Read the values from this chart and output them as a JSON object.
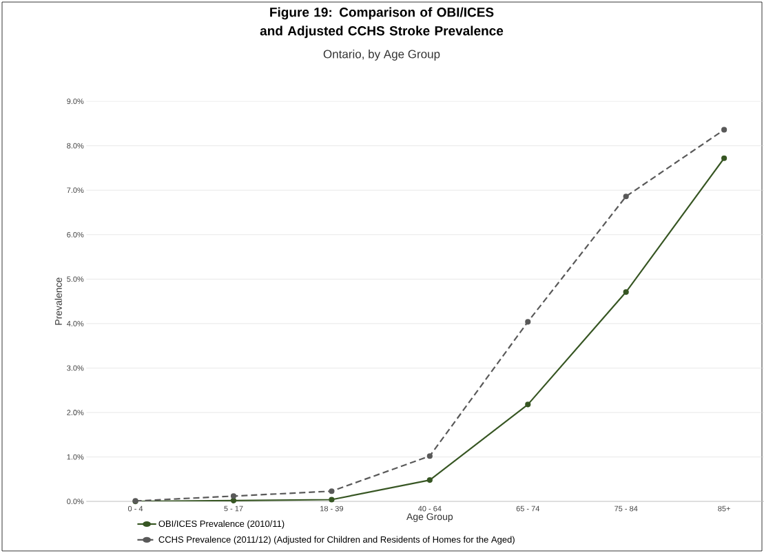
{
  "chart_data": {
    "type": "line",
    "title": "Figure 19: Comparison of OBI/ICES and Adjusted CCHS Stroke Prevalence",
    "subtitle": "Ontario, by Age Group",
    "xlabel": "Age Group",
    "ylabel": "Prevalence",
    "categories": [
      "0 - 4",
      "5 - 17",
      "18 - 39",
      "40 - 64",
      "65 - 74",
      "75 - 84",
      "85+"
    ],
    "series": [
      {
        "name": "OBI/ICES Prevalence (2010/11)",
        "color": "#375623",
        "line_style": "solid",
        "values": [
          0.0,
          0.02,
          0.04,
          0.48,
          2.18,
          4.71,
          7.72
        ]
      },
      {
        "name": "CCHS Prevalence (2011/12) (Adjusted for Children and Residents of Homes for the Aged)",
        "color": "#595959",
        "line_style": "dashed",
        "values": [
          0.01,
          0.12,
          0.23,
          1.02,
          4.04,
          6.86,
          8.36
        ]
      }
    ],
    "ylim": [
      0,
      9
    ],
    "yticks": [
      {
        "value": 0,
        "label": "0.0%"
      },
      {
        "value": 1,
        "label": "1.0%"
      },
      {
        "value": 2,
        "label": "2.0%"
      },
      {
        "value": 3,
        "label": "3.0%"
      },
      {
        "value": 4,
        "label": "4.0%"
      },
      {
        "value": 5,
        "label": "5.0%"
      },
      {
        "value": 6,
        "label": "6.0%"
      },
      {
        "value": 7,
        "label": "7.0%"
      },
      {
        "value": 8,
        "label": "8.0%"
      },
      {
        "value": 9,
        "label": "9.0%"
      }
    ],
    "grid": "y",
    "legend": "bottom",
    "marker": "circle"
  }
}
